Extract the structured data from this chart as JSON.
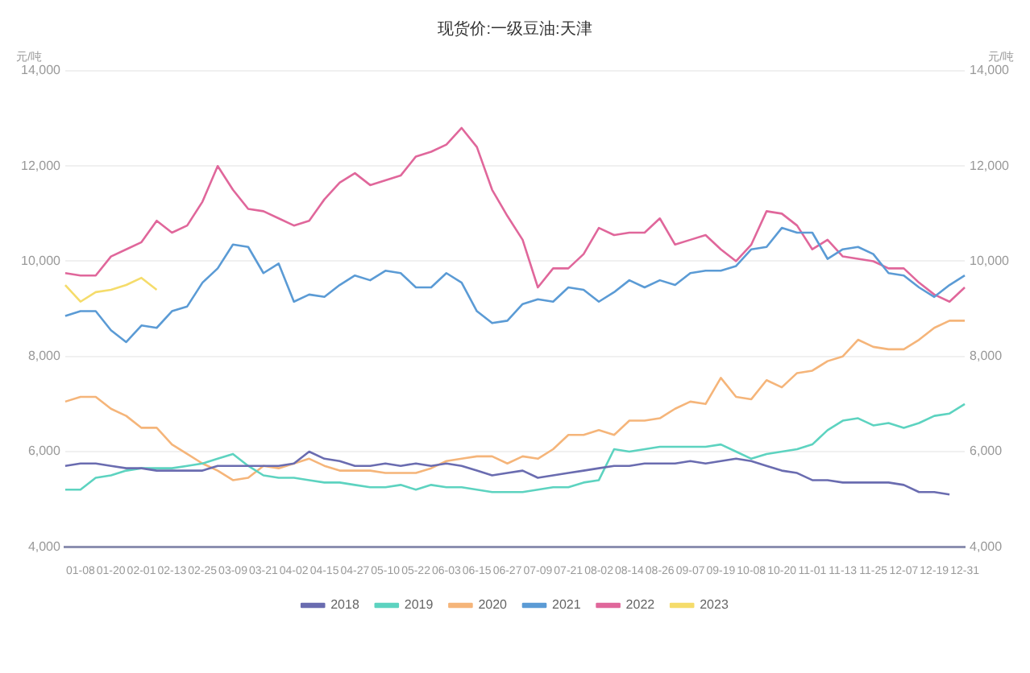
{
  "chart_data": {
    "type": "line",
    "title": "现货价:一级豆油:天津",
    "ylabel": "元/吨",
    "y2label": "元/吨",
    "categories": [
      null,
      "01-08",
      null,
      "01-20",
      null,
      "02-01",
      null,
      "02-13",
      null,
      "02-25",
      null,
      "03-09",
      null,
      "03-21",
      null,
      "04-02",
      null,
      "04-15",
      null,
      "04-27",
      null,
      "05-10",
      null,
      "05-22",
      null,
      "06-03",
      null,
      "06-15",
      null,
      "06-27",
      null,
      "07-09",
      null,
      "07-21",
      null,
      "08-02",
      null,
      "08-14",
      null,
      "08-26",
      null,
      "09-07",
      null,
      "09-19",
      null,
      "10-08",
      null,
      "10-20",
      null,
      "11-01",
      null,
      "11-13",
      null,
      "11-25",
      null,
      "12-07",
      null,
      "12-19",
      null,
      "12-31"
    ],
    "series": [
      {
        "name": "2018",
        "color": "#6a6cb0",
        "values": [
          5700,
          5750,
          5750,
          5700,
          5650,
          5650,
          5600,
          5600,
          5600,
          5600,
          5700,
          5700,
          5700,
          5700,
          5700,
          5750,
          6000,
          5850,
          5800,
          5700,
          5700,
          5750,
          5700,
          5750,
          5700,
          5750,
          5700,
          5600,
          5500,
          5550,
          5600,
          5450,
          5500,
          5550,
          5600,
          5650,
          5700,
          5700,
          5750,
          5750,
          5750,
          5800,
          5750,
          5800,
          5850,
          5800,
          5700,
          5600,
          5550,
          5400,
          5400,
          5350,
          5350,
          5350,
          5350,
          5300,
          5150,
          5150,
          5100,
          null
        ]
      },
      {
        "name": "2019",
        "color": "#5dd3c0",
        "values": [
          5200,
          5200,
          5450,
          5500,
          5600,
          5650,
          5650,
          5650,
          5700,
          5750,
          5850,
          5950,
          5700,
          5500,
          5450,
          5450,
          5400,
          5350,
          5350,
          5300,
          5250,
          5250,
          5300,
          5200,
          5300,
          5250,
          5250,
          5200,
          5150,
          5150,
          5150,
          5200,
          5250,
          5250,
          5350,
          5400,
          6050,
          6000,
          6050,
          6100,
          6100,
          6100,
          6100,
          6150,
          6000,
          5850,
          5950,
          6000,
          6050,
          6150,
          6450,
          6650,
          6700,
          6550,
          6600,
          6500,
          6600,
          6750,
          6800,
          7000
        ]
      },
      {
        "name": "2020",
        "color": "#f5b57a",
        "values": [
          7050,
          7150,
          7150,
          6900,
          6750,
          6500,
          6500,
          6150,
          5950,
          5750,
          5600,
          5400,
          5450,
          5700,
          5650,
          5750,
          5850,
          5700,
          5600,
          5600,
          5600,
          5550,
          5550,
          5550,
          5650,
          5800,
          5850,
          5900,
          5900,
          5750,
          5900,
          5850,
          6050,
          6350,
          6350,
          6450,
          6350,
          6650,
          6650,
          6700,
          6900,
          7050,
          7000,
          7550,
          7150,
          7100,
          7500,
          7350,
          7650,
          7700,
          7900,
          8000,
          8350,
          8200,
          8150,
          8150,
          8350,
          8600,
          8750,
          8750
        ]
      },
      {
        "name": "2021",
        "color": "#5b9bd5",
        "values": [
          8850,
          8950,
          8950,
          8550,
          8300,
          8650,
          8600,
          8950,
          9050,
          9550,
          9850,
          10350,
          10300,
          9750,
          9950,
          9150,
          9300,
          9250,
          9500,
          9700,
          9600,
          9800,
          9750,
          9450,
          9450,
          9750,
          9550,
          8950,
          8700,
          8750,
          9100,
          9200,
          9150,
          9450,
          9400,
          9150,
          9350,
          9600,
          9450,
          9600,
          9500,
          9750,
          9800,
          9800,
          9900,
          10250,
          10300,
          10700,
          10600,
          10600,
          10050,
          10250,
          10300,
          10150,
          9750,
          9700,
          9450,
          9250,
          9500,
          9700
        ]
      },
      {
        "name": "2022",
        "color": "#e0679b",
        "values": [
          9750,
          9700,
          9700,
          10100,
          10250,
          10400,
          10850,
          10600,
          10750,
          11250,
          12000,
          11500,
          11100,
          11050,
          10900,
          10750,
          10850,
          11300,
          11650,
          11850,
          11600,
          11700,
          11800,
          12200,
          12300,
          12450,
          12800,
          12400,
          11500,
          10950,
          10450,
          9450,
          9850,
          9850,
          10150,
          10700,
          10550,
          10600,
          10600,
          10900,
          10350,
          10450,
          10550,
          10250,
          10000,
          10350,
          11050,
          11000,
          10750,
          10250,
          10450,
          10100,
          10050,
          10000,
          9850,
          9850,
          9550,
          9300,
          9150,
          9450
        ]
      },
      {
        "name": "2023",
        "color": "#f5dc6b",
        "values": [
          9500,
          9150,
          9350,
          9400,
          9500,
          9650,
          9400,
          null,
          null,
          null,
          null,
          null,
          null,
          null,
          null,
          null,
          null,
          null,
          null,
          null,
          null,
          null,
          null,
          null,
          null,
          null,
          null,
          null,
          null,
          null,
          null,
          null,
          null,
          null,
          null,
          null,
          null,
          null,
          null,
          null,
          null,
          null,
          null,
          null,
          null,
          null,
          null,
          null,
          null,
          null,
          null,
          null,
          null,
          null,
          null,
          null,
          null,
          null,
          null,
          null
        ]
      }
    ],
    "ylim": [
      4000,
      14000
    ],
    "yticks": [
      {
        "value": 4000,
        "label": "4,000"
      },
      {
        "value": 6000,
        "label": "6,000"
      },
      {
        "value": 8000,
        "label": "8,000"
      },
      {
        "value": 10000,
        "label": "10,000"
      },
      {
        "value": 12000,
        "label": "12,000"
      },
      {
        "value": 14000,
        "label": "14,000"
      }
    ],
    "y2lim": [
      4000,
      14000
    ],
    "y2ticks": [
      {
        "value": 4000,
        "label": "4,000"
      },
      {
        "value": 6000,
        "label": "6,000"
      },
      {
        "value": 8000,
        "label": "8,000"
      },
      {
        "value": 10000,
        "label": "10,000"
      },
      {
        "value": 12000,
        "label": "12,000"
      },
      {
        "value": 14000,
        "label": "14,000"
      }
    ],
    "grid": "y",
    "legend": "bottom",
    "marker": "none",
    "line_style": "solid"
  }
}
